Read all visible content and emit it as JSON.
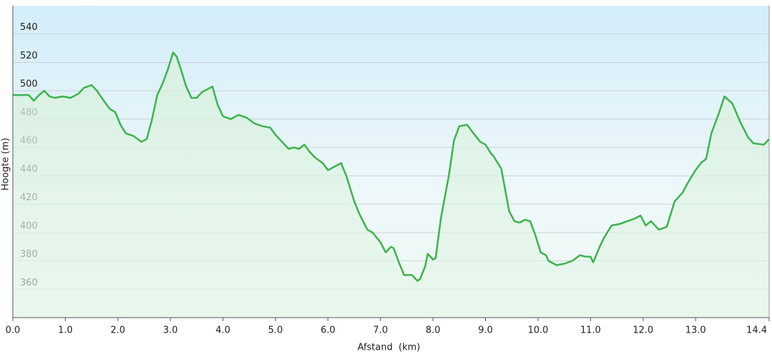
{
  "chart_data": {
    "type": "line",
    "x_label": "Afstand  (km)",
    "y_label": "Hoogte (m)",
    "xlim": [
      0,
      14.4
    ],
    "ylim": [
      340,
      560
    ],
    "xticks": [
      {
        "value": 0,
        "label": "0.0"
      },
      {
        "value": 1,
        "label": "1.0"
      },
      {
        "value": 2,
        "label": "2.0"
      },
      {
        "value": 3,
        "label": "3.0"
      },
      {
        "value": 4,
        "label": "4.0"
      },
      {
        "value": 5,
        "label": "5.0"
      },
      {
        "value": 6,
        "label": "6.0"
      },
      {
        "value": 7,
        "label": "7.0"
      },
      {
        "value": 8,
        "label": "8.0"
      },
      {
        "value": 9,
        "label": "9.0"
      },
      {
        "value": 10,
        "label": "10.0"
      },
      {
        "value": 11,
        "label": "11.0"
      },
      {
        "value": 12,
        "label": "12.0"
      },
      {
        "value": 13,
        "label": "13.0"
      },
      {
        "value": 14.4,
        "label": "14.4"
      }
    ],
    "yticks": [
      360,
      380,
      400,
      420,
      440,
      460,
      480,
      500,
      520,
      540
    ],
    "grid": true,
    "color": "#3cb44b",
    "x": [
      0,
      0.3,
      0.4,
      0.5,
      0.6,
      0.7,
      0.8,
      0.95,
      1.1,
      1.25,
      1.35,
      1.5,
      1.6,
      1.75,
      1.85,
      1.95,
      2.05,
      2.15,
      2.3,
      2.45,
      2.55,
      2.65,
      2.75,
      2.85,
      2.95,
      3.05,
      3.12,
      3.2,
      3.3,
      3.4,
      3.5,
      3.6,
      3.7,
      3.8,
      3.9,
      4.0,
      4.15,
      4.3,
      4.45,
      4.6,
      4.75,
      4.9,
      5.0,
      5.15,
      5.25,
      5.35,
      5.45,
      5.55,
      5.65,
      5.75,
      5.9,
      6.0,
      6.1,
      6.25,
      6.35,
      6.5,
      6.6,
      6.75,
      6.85,
      7.0,
      7.1,
      7.2,
      7.25,
      7.35,
      7.45,
      7.6,
      7.7,
      7.75,
      7.85,
      7.9,
      8.0,
      8.05,
      8.15,
      8.3,
      8.4,
      8.5,
      8.65,
      8.75,
      8.9,
      9.0,
      9.1,
      9.15,
      9.3,
      9.45,
      9.55,
      9.65,
      9.75,
      9.85,
      9.95,
      10.05,
      10.15,
      10.2,
      10.35,
      10.5,
      10.65,
      10.8,
      10.9,
      11.0,
      11.05,
      11.15,
      11.25,
      11.4,
      11.55,
      11.7,
      11.85,
      11.95,
      12.05,
      12.15,
      12.3,
      12.45,
      12.6,
      12.75,
      12.85,
      13.0,
      13.1,
      13.2,
      13.3,
      13.45,
      13.55,
      13.7,
      13.85,
      14.0,
      14.1,
      14.3,
      14.4
    ],
    "values": [
      497,
      497,
      493,
      497,
      500,
      496,
      495,
      496,
      495,
      498,
      502,
      504,
      500,
      492,
      487,
      485,
      476,
      470,
      468,
      464,
      466,
      480,
      497,
      505,
      515,
      527,
      524,
      515,
      503,
      495,
      495,
      499,
      501,
      503,
      490,
      482,
      480,
      483,
      481,
      477,
      475,
      474,
      469,
      463,
      459,
      460,
      459,
      462,
      457,
      453,
      449,
      444,
      446,
      449,
      440,
      422,
      413,
      402,
      400,
      393,
      386,
      390,
      389,
      379,
      370,
      370,
      366,
      367,
      376,
      385,
      381,
      382,
      410,
      440,
      465,
      475,
      476,
      471,
      464,
      462,
      456,
      454,
      445,
      415,
      408,
      407,
      409,
      408,
      398,
      386,
      384,
      380,
      377,
      378,
      380,
      384,
      383,
      383,
      379,
      388,
      396,
      405,
      406,
      408,
      410,
      412,
      405,
      408,
      402,
      404,
      422,
      428,
      435,
      444,
      449,
      452,
      470,
      485,
      496,
      491,
      478,
      467,
      463,
      462,
      466
    ]
  }
}
